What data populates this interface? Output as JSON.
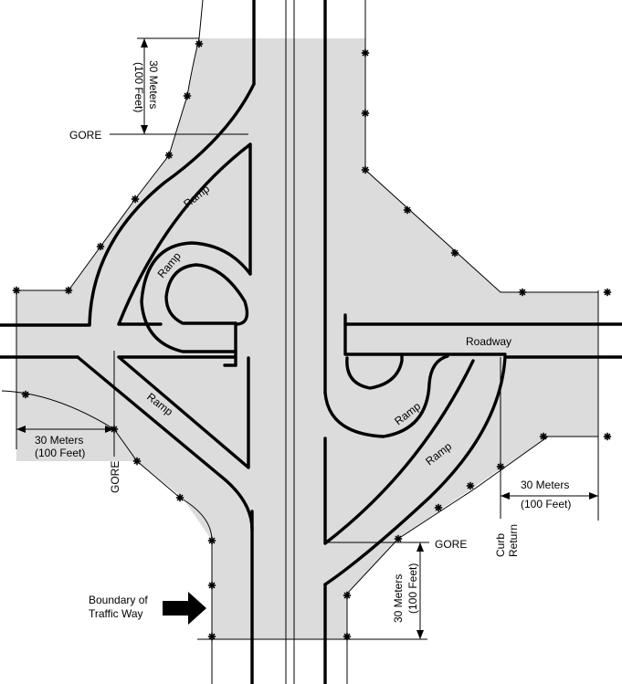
{
  "labels": {
    "roadway": "Roadway",
    "ramp": "Ramp",
    "gore": "GORE",
    "curb_return": [
      "Curb",
      "Return"
    ],
    "boundary": [
      "Boundary of",
      "Traffic Way"
    ],
    "dim_metric": "30 Meters",
    "dim_imperial": "(100 Feet)"
  },
  "colors": {
    "area_fill": "#dcdcdc",
    "line": "#000000",
    "background": "#ffffff"
  },
  "icons": {
    "boundary_marker": "asterisk",
    "pointer": "right-arrow"
  }
}
